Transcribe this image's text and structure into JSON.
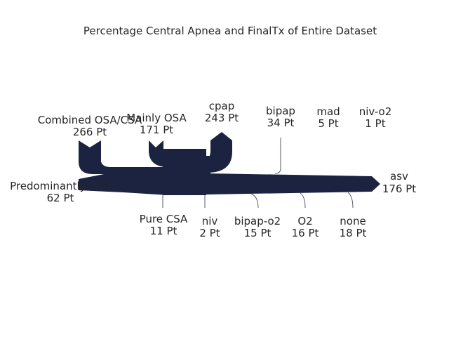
{
  "title": "Percentage Central Apnea and FinalTx of Entire Dataset",
  "colors": {
    "flow": "#1b2340",
    "text": "#262626"
  },
  "inputs": [
    {
      "key": "combined",
      "name": "Combined OSA/CSA",
      "count": "266 Pt"
    },
    {
      "key": "mainly",
      "name": "Mainly OSA",
      "count": "171 Pt"
    },
    {
      "key": "predom",
      "name": "Predominantly CSA",
      "count": "62 Pt"
    },
    {
      "key": "pure",
      "name": "Pure CSA",
      "count": "11 Pt"
    }
  ],
  "outputs": [
    {
      "key": "cpap",
      "name": "cpap",
      "count": "243 Pt"
    },
    {
      "key": "bipap",
      "name": "bipap",
      "count": "34 Pt"
    },
    {
      "key": "mad",
      "name": "mad",
      "count": "5 Pt"
    },
    {
      "key": "nivo2",
      "name": "niv-o2",
      "count": "1 Pt"
    },
    {
      "key": "asv",
      "name": "asv",
      "count": "176 Pt"
    },
    {
      "key": "niv",
      "name": "niv",
      "count": "2 Pt"
    },
    {
      "key": "bipapo2",
      "name": "bipap-o2",
      "count": "15 Pt"
    },
    {
      "key": "o2",
      "name": "O2",
      "count": "16 Pt"
    },
    {
      "key": "none",
      "name": "none",
      "count": "18 Pt"
    }
  ]
}
